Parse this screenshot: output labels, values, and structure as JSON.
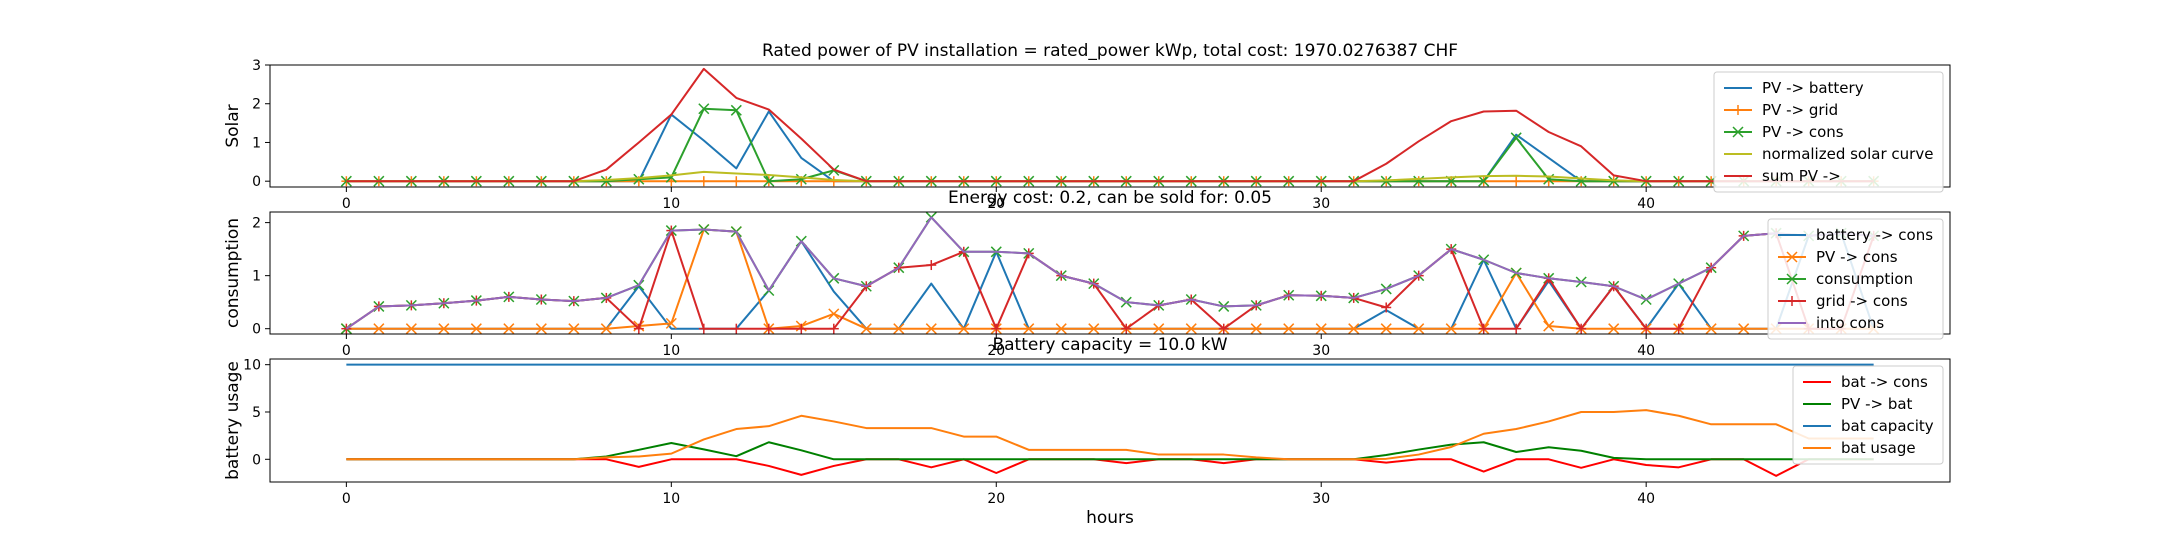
{
  "chart_data": [
    {
      "type": "line",
      "title": "Rated power of PV installation = rated_power kWp, total cost: 1970.0276387 CHF",
      "xlabel": "",
      "ylabel": "Solar",
      "xlim": [
        -2.35,
        49.35
      ],
      "ylim": [
        -0.15,
        3.0
      ],
      "xticks": [
        0,
        10,
        20,
        30,
        40
      ],
      "yticks": [
        0,
        1,
        2,
        3
      ],
      "x": [
        0,
        1,
        2,
        3,
        4,
        5,
        6,
        7,
        8,
        9,
        10,
        11,
        12,
        13,
        14,
        15,
        16,
        17,
        18,
        19,
        20,
        21,
        22,
        23,
        24,
        25,
        26,
        27,
        28,
        29,
        30,
        31,
        32,
        33,
        34,
        35,
        36,
        37,
        38,
        39,
        40,
        41,
        42,
        43,
        44,
        45,
        46,
        47
      ],
      "legend_position": "upper-right",
      "series": [
        {
          "name": "PV -> battery",
          "color": "#1f77b4",
          "marker": "none",
          "values": [
            0,
            0,
            0,
            0,
            0,
            0,
            0,
            0,
            0,
            0,
            1.72,
            1.05,
            0.33,
            1.8,
            0.6,
            0,
            0,
            0,
            0,
            0,
            0,
            0,
            0,
            0,
            0,
            0,
            0,
            0,
            0,
            0,
            0,
            0,
            0,
            0,
            0,
            0,
            1.2,
            0.6,
            0,
            0,
            0,
            0,
            0,
            0,
            0,
            0,
            0,
            0
          ]
        },
        {
          "name": "PV -> grid",
          "color": "#ff7f0e",
          "marker": "plus",
          "values": [
            0,
            0,
            0,
            0,
            0,
            0,
            0,
            0,
            0,
            0,
            0,
            0,
            0,
            0,
            0,
            0,
            0,
            0,
            0,
            0,
            0,
            0,
            0,
            0,
            0,
            0,
            0,
            0,
            0,
            0,
            0,
            0,
            0,
            0,
            0,
            0,
            0,
            0,
            0,
            0,
            0,
            0,
            0,
            0,
            0,
            0,
            0,
            0
          ]
        },
        {
          "name": "PV -> cons",
          "color": "#2ca02c",
          "marker": "x",
          "values": [
            0,
            0,
            0,
            0,
            0,
            0,
            0,
            0,
            0,
            0.05,
            0.1,
            1.87,
            1.83,
            0,
            0.05,
            0.28,
            0,
            0,
            0,
            0,
            0,
            0,
            0,
            0,
            0,
            0,
            0,
            0,
            0,
            0,
            0,
            0,
            0,
            0,
            0,
            0,
            1.12,
            0.05,
            0,
            0,
            0,
            0,
            0,
            0,
            0,
            0,
            0,
            0
          ]
        },
        {
          "name": "normalized solar curve",
          "color": "#bcbd22",
          "marker": "none",
          "values": [
            0,
            0,
            0,
            0,
            0,
            0,
            0,
            0,
            0.03,
            0.08,
            0.15,
            0.24,
            0.2,
            0.16,
            0.1,
            0.03,
            0,
            0,
            0,
            0,
            0,
            0,
            0,
            0,
            0,
            0,
            0,
            0,
            0,
            0,
            0,
            0,
            0.02,
            0.06,
            0.1,
            0.13,
            0.14,
            0.12,
            0.07,
            0.02,
            0,
            0,
            0,
            0,
            0,
            0,
            0,
            0
          ]
        },
        {
          "name": "sum PV ->",
          "color": "#d62728",
          "marker": "none",
          "values": [
            0,
            0,
            0,
            0,
            0,
            0,
            0,
            0,
            0.3,
            1.0,
            1.72,
            2.9,
            2.15,
            1.85,
            1.1,
            0.3,
            0,
            0,
            0,
            0,
            0,
            0,
            0,
            0,
            0,
            0,
            0,
            0,
            0,
            0,
            0,
            0,
            0.45,
            1.03,
            1.55,
            1.8,
            1.82,
            1.27,
            0.9,
            0.15,
            0,
            0,
            0,
            0,
            0,
            0,
            0,
            0
          ]
        }
      ]
    },
    {
      "type": "line",
      "title": "Energy cost: 0.2, can be sold for: 0.05",
      "xlabel": "",
      "ylabel": "consumption",
      "xlim": [
        -2.35,
        49.35
      ],
      "ylim": [
        -0.1,
        2.2
      ],
      "xticks": [
        0,
        10,
        20,
        30,
        40
      ],
      "yticks": [
        0,
        1,
        2
      ],
      "x": [
        0,
        1,
        2,
        3,
        4,
        5,
        6,
        7,
        8,
        9,
        10,
        11,
        12,
        13,
        14,
        15,
        16,
        17,
        18,
        19,
        20,
        21,
        22,
        23,
        24,
        25,
        26,
        27,
        28,
        29,
        30,
        31,
        32,
        33,
        34,
        35,
        36,
        37,
        38,
        39,
        40,
        41,
        42,
        43,
        44,
        45,
        46,
        47
      ],
      "legend_position": "upper-right",
      "series": [
        {
          "name": "battery -> cons",
          "color": "#1f77b4",
          "marker": "none",
          "values": [
            0,
            0,
            0,
            0,
            0,
            0,
            0,
            0,
            0,
            0.8,
            0,
            0,
            0,
            0.72,
            1.65,
            0.7,
            0,
            0,
            0.85,
            0,
            1.45,
            0,
            0,
            0,
            0,
            0,
            0,
            0,
            0,
            0,
            0,
            0,
            0.35,
            0,
            0,
            1.3,
            0,
            0.9,
            0,
            0.8,
            0,
            0.85,
            0,
            0,
            0,
            1.75,
            1.8,
            0
          ]
        },
        {
          "name": "PV -> cons",
          "color": "#ff7f0e",
          "marker": "x",
          "values": [
            0,
            0,
            0,
            0,
            0,
            0,
            0,
            0,
            0,
            0.05,
            0.1,
            1.87,
            1.83,
            0,
            0.05,
            0.28,
            0,
            0,
            0,
            0,
            0,
            0,
            0,
            0,
            0,
            0,
            0,
            0,
            0,
            0,
            0,
            0,
            0,
            0,
            0,
            0,
            1.05,
            0.05,
            0,
            0,
            0,
            0,
            0,
            0,
            0,
            0,
            0,
            0
          ]
        },
        {
          "name": "consumption",
          "color": "#2ca02c",
          "marker": "x",
          "values": [
            0,
            0.42,
            0.44,
            0.48,
            0.53,
            0.6,
            0.55,
            0.52,
            0.58,
            0.82,
            1.85,
            1.87,
            1.83,
            0.72,
            1.65,
            0.95,
            0.8,
            1.15,
            2.1,
            1.45,
            1.45,
            1.42,
            1.0,
            0.85,
            0.5,
            0.44,
            0.55,
            0.42,
            0.44,
            0.63,
            0.62,
            0.58,
            0.75,
            1.0,
            1.5,
            1.3,
            1.05,
            0.95,
            0.88,
            0.8,
            0.55,
            0.85,
            1.15,
            1.75,
            1.8,
            1.75,
            1.8,
            1.75
          ]
        },
        {
          "name": "grid -> cons",
          "color": "#d62728",
          "marker": "plus",
          "values": [
            0,
            0.42,
            0.44,
            0.48,
            0.53,
            0.6,
            0.55,
            0.52,
            0.58,
            0,
            1.85,
            0,
            0,
            0,
            0,
            0,
            0.8,
            1.15,
            1.2,
            1.45,
            0,
            1.42,
            1.0,
            0.85,
            0,
            0.44,
            0.55,
            0,
            0.44,
            0.63,
            0.62,
            0.58,
            0.4,
            1.0,
            1.5,
            0,
            0,
            0.95,
            0,
            0.8,
            0,
            0,
            1.15,
            1.75,
            1.8,
            0,
            0,
            1.75
          ]
        },
        {
          "name": "into cons",
          "color": "#9467bd",
          "marker": "none",
          "values": [
            0,
            0.42,
            0.44,
            0.48,
            0.53,
            0.6,
            0.55,
            0.52,
            0.58,
            0.82,
            1.85,
            1.87,
            1.83,
            0.72,
            1.65,
            0.95,
            0.8,
            1.15,
            2.1,
            1.45,
            1.45,
            1.42,
            1.0,
            0.85,
            0.5,
            0.44,
            0.55,
            0.42,
            0.44,
            0.63,
            0.62,
            0.58,
            0.75,
            1.0,
            1.5,
            1.3,
            1.05,
            0.95,
            0.88,
            0.8,
            0.55,
            0.85,
            1.15,
            1.75,
            1.8,
            1.75,
            1.8,
            1.75
          ]
        }
      ]
    },
    {
      "type": "line",
      "title": "Battery capacity = 10.0 kW",
      "xlabel": "hours",
      "ylabel": "battery usage",
      "xlim": [
        -2.35,
        49.35
      ],
      "ylim": [
        -2.4,
        10.6
      ],
      "xticks": [
        0,
        10,
        20,
        30,
        40
      ],
      "yticks": [
        0,
        5,
        10
      ],
      "x": [
        0,
        1,
        2,
        3,
        4,
        5,
        6,
        7,
        8,
        9,
        10,
        11,
        12,
        13,
        14,
        15,
        16,
        17,
        18,
        19,
        20,
        21,
        22,
        23,
        24,
        25,
        26,
        27,
        28,
        29,
        30,
        31,
        32,
        33,
        34,
        35,
        36,
        37,
        38,
        39,
        40,
        41,
        42,
        43,
        44,
        45,
        46,
        47
      ],
      "legend_position": "upper-right",
      "series": [
        {
          "name": "bat -> cons",
          "color": "#ff0000",
          "marker": "none",
          "values": [
            0,
            0,
            0,
            0,
            0,
            0,
            0,
            0,
            0,
            -0.8,
            0,
            0,
            0,
            -0.7,
            -1.65,
            -0.7,
            0,
            0,
            -0.85,
            0,
            -1.45,
            0,
            0,
            0,
            -0.4,
            0,
            0,
            -0.4,
            0,
            0,
            0,
            0,
            -0.35,
            0,
            0,
            -1.3,
            0,
            0,
            -0.9,
            0,
            -0.6,
            -0.85,
            0,
            0,
            -1.75,
            0,
            0,
            0
          ]
        },
        {
          "name": "PV -> bat",
          "color": "#008000",
          "marker": "none",
          "values": [
            0,
            0,
            0,
            0,
            0,
            0,
            0,
            0,
            0.3,
            1.0,
            1.72,
            1.05,
            0.33,
            1.8,
            0.95,
            0,
            0,
            0,
            0,
            0,
            0,
            0,
            0,
            0,
            0,
            0,
            0,
            0,
            0,
            0,
            0,
            0,
            0.45,
            1.03,
            1.55,
            1.8,
            0.77,
            1.27,
            0.9,
            0.15,
            0,
            0,
            0,
            0,
            0,
            0,
            0,
            0
          ]
        },
        {
          "name": "bat capacity",
          "color": "#1f77b4",
          "marker": "none",
          "values": [
            10,
            10,
            10,
            10,
            10,
            10,
            10,
            10,
            10,
            10,
            10,
            10,
            10,
            10,
            10,
            10,
            10,
            10,
            10,
            10,
            10,
            10,
            10,
            10,
            10,
            10,
            10,
            10,
            10,
            10,
            10,
            10,
            10,
            10,
            10,
            10,
            10,
            10,
            10,
            10,
            10,
            10,
            10,
            10,
            10,
            10,
            10,
            10
          ]
        },
        {
          "name": "bat usage",
          "color": "#ff7f0e",
          "marker": "none",
          "values": [
            0,
            0,
            0,
            0,
            0,
            0,
            0,
            0,
            0.2,
            0.3,
            0.6,
            2.1,
            3.2,
            3.5,
            4.6,
            4.0,
            3.3,
            3.3,
            3.3,
            2.4,
            2.4,
            1.0,
            1.0,
            1.0,
            1.0,
            0.5,
            0.5,
            0.5,
            0.2,
            0,
            0,
            0,
            0.05,
            0.5,
            1.3,
            2.7,
            3.2,
            4.0,
            5.0,
            5.0,
            5.2,
            4.6,
            3.7,
            3.7,
            3.7,
            2.2,
            2.2,
            2.2
          ]
        }
      ]
    }
  ]
}
